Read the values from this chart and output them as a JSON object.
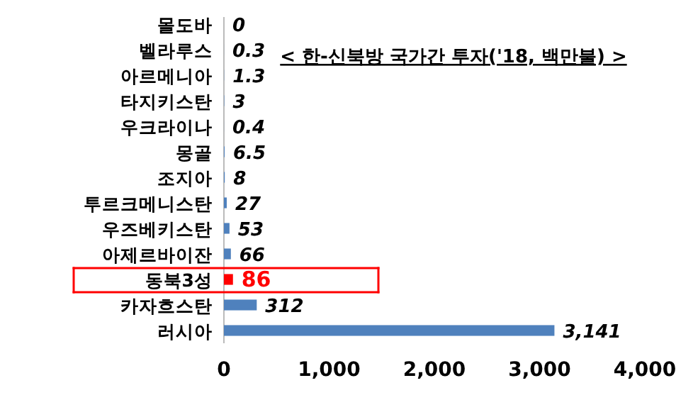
{
  "chart_data": {
    "type": "bar",
    "orientation": "horizontal",
    "title": "< 한-신북방 국가간 투자('18, 백만불) >",
    "categories": [
      "몰도바",
      "벨라루스",
      "아르메니아",
      "타지키스탄",
      "우크라이나",
      "몽골",
      "조지아",
      "투르크메니스탄",
      "우즈베키스탄",
      "아제르바이잔",
      "동북3성",
      "카자흐스탄",
      "러시아"
    ],
    "values": [
      0,
      0.3,
      1.3,
      3,
      0.4,
      6.5,
      8,
      27,
      53,
      66,
      86,
      312,
      3141
    ],
    "colors": [
      "#4f81bd",
      "#4f81bd",
      "#4f81bd",
      "#4f81bd",
      "#4f81bd",
      "#4f81bd",
      "#4f81bd",
      "#4f81bd",
      "#4f81bd",
      "#4f81bd",
      "#ff0000",
      "#4f81bd",
      "#4f81bd"
    ],
    "value_labels": [
      "0",
      "0.3",
      "1.3",
      "3",
      "0.4",
      "6.5",
      "8",
      "27",
      "53",
      "66",
      "86",
      "312",
      "3,141"
    ],
    "xlim": [
      0,
      4000
    ],
    "xticks": [
      0,
      {
        "value": 1000,
        "label": "1,000"
      },
      {
        "value": 2000,
        "label": "2,000"
      },
      {
        "value": 3000,
        "label": "3,000"
      },
      {
        "value": 4000,
        "label": "4,000"
      }
    ],
    "grid": false
  }
}
